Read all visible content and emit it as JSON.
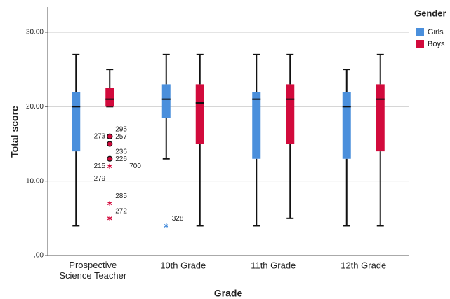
{
  "chart_data": {
    "type": "boxplot",
    "x_label": "Grade",
    "y_label": "Total score",
    "categories": [
      "Prospective Science Teacher",
      "10th Grade",
      "11th Grade",
      "12th Grade"
    ],
    "ylim": [
      0,
      31.5
    ],
    "yticks": [
      {
        "value": 0,
        "label": ".00"
      },
      {
        "value": 10,
        "label": "10.00"
      },
      {
        "value": 20,
        "label": "20.00"
      },
      {
        "value": 30,
        "label": "30.00"
      }
    ],
    "grid": true,
    "legend_title": "Gender",
    "legend": "right",
    "series": [
      {
        "name": "Girls",
        "color": "#4a8fdc",
        "min": [
          4,
          13,
          4,
          4
        ],
        "q1": [
          14,
          18.5,
          13,
          13
        ],
        "median": [
          20,
          21,
          21,
          20
        ],
        "q3": [
          22,
          23,
          22,
          22
        ],
        "max": [
          27,
          27,
          27,
          25
        ],
        "outliers": [
          [],
          [
            {
              "value": 4,
              "label": "328",
              "marker": "star"
            }
          ],
          [],
          []
        ]
      },
      {
        "name": "Boys",
        "color": "#d20a3c",
        "min": [
          20,
          4,
          5,
          4
        ],
        "q1": [
          20,
          15,
          15,
          14
        ],
        "median": [
          21,
          20.5,
          21,
          21
        ],
        "q3": [
          22.5,
          23,
          23,
          23
        ],
        "max": [
          25,
          27,
          27,
          27
        ],
        "outliers": [
          [
            {
              "value": 16,
              "label": "295",
              "marker": "circle"
            },
            {
              "value": 16,
              "label": "273",
              "marker": "circle"
            },
            {
              "value": 15,
              "label": "257",
              "marker": "circle"
            },
            {
              "value": 13,
              "label": "236",
              "marker": "circle"
            },
            {
              "value": 12,
              "label": "226",
              "marker": "star"
            },
            {
              "value": 12,
              "label": "215",
              "marker": "star"
            },
            {
              "value": 12,
              "label": "700",
              "marker": "star"
            },
            {
              "value": 12,
              "label": "279",
              "marker": "star"
            },
            {
              "value": 7,
              "label": "285",
              "marker": "star"
            },
            {
              "value": 5,
              "label": "272",
              "marker": "star"
            }
          ],
          [],
          [],
          []
        ]
      }
    ]
  }
}
